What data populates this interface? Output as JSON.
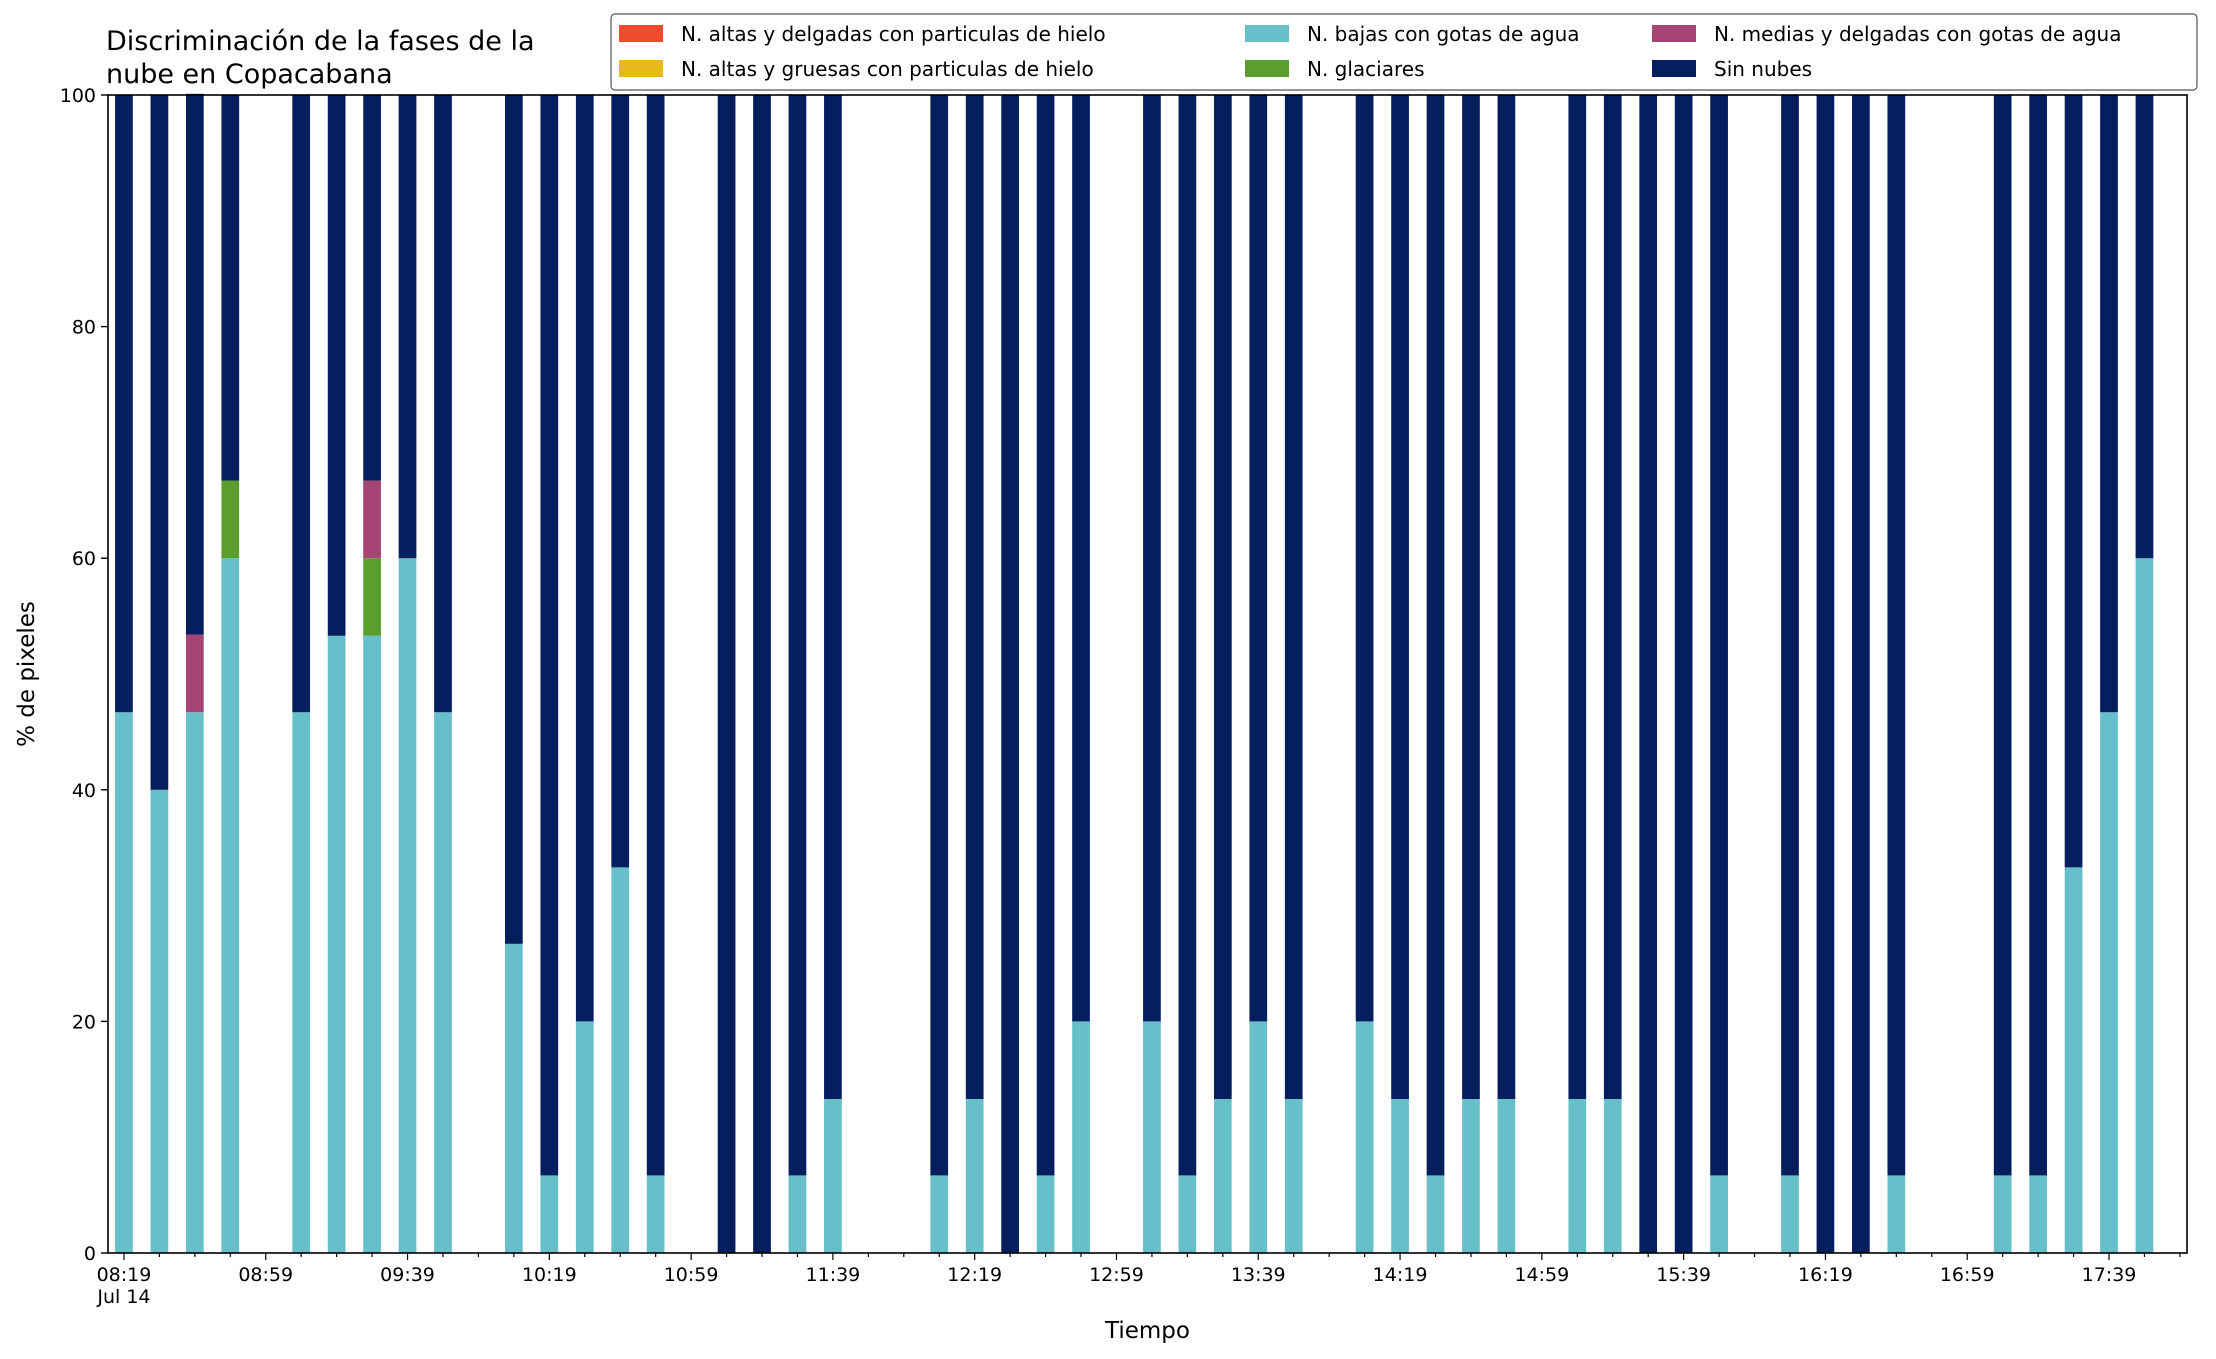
{
  "chart_data": {
    "type": "bar",
    "stacked": true,
    "title": "Discriminación de la fases de la\nnube en Copacabana",
    "xlabel": "Tiempo",
    "ylabel": "% de pixeles",
    "ylim": [
      0,
      100
    ],
    "yticks": [
      0,
      20,
      40,
      60,
      80,
      100
    ],
    "grid": false,
    "legend_position": "top-right",
    "x_date_label": "Jul 14",
    "x_tick_labels": [
      "08:19",
      "08:59",
      "09:39",
      "10:19",
      "10:59",
      "11:39",
      "12:19",
      "12:59",
      "13:39",
      "14:19",
      "14:59",
      "15:39",
      "16:19",
      "16:59",
      "17:39"
    ],
    "categories": [
      "08:19",
      "08:29",
      "08:39",
      "08:49",
      "08:59",
      "09:09",
      "09:19",
      "09:29",
      "09:39",
      "09:49",
      "09:59",
      "10:09",
      "10:19",
      "10:29",
      "10:39",
      "10:49",
      "10:59",
      "11:09",
      "11:19",
      "11:29",
      "11:39",
      "11:49",
      "11:59",
      "12:09",
      "12:19",
      "12:29",
      "12:39",
      "12:49",
      "12:59",
      "13:09",
      "13:19",
      "13:29",
      "13:39",
      "13:49",
      "13:59",
      "14:09",
      "14:19",
      "14:29",
      "14:39",
      "14:49",
      "14:59",
      "15:09",
      "15:19",
      "15:29",
      "15:39",
      "15:49",
      "15:59",
      "16:09",
      "16:19",
      "16:29",
      "16:39",
      "16:49",
      "16:59",
      "17:09",
      "17:19",
      "17:29",
      "17:39",
      "17:49"
    ],
    "series": [
      {
        "name": "N. altas y delgadas con particulas de hielo",
        "color": "#ee4c2c",
        "values": [
          0,
          0,
          0,
          0,
          null,
          0,
          0,
          0,
          0,
          0,
          null,
          0,
          0,
          0,
          0,
          0,
          null,
          0,
          0,
          0,
          0,
          0,
          null,
          0,
          0,
          0,
          0,
          0,
          null,
          0,
          0,
          0,
          0,
          0,
          null,
          0,
          0,
          0,
          0,
          0,
          null,
          0,
          0,
          0,
          0,
          0,
          null,
          0,
          0,
          0,
          0,
          0,
          null,
          0,
          0,
          0,
          0,
          0
        ]
      },
      {
        "name": "N. altas y gruesas con particulas de hielo",
        "color": "#e7b91c",
        "values": [
          0,
          0,
          0,
          0,
          null,
          0,
          0,
          0,
          0,
          0,
          null,
          0,
          0,
          0,
          0,
          0,
          null,
          0,
          0,
          0,
          0,
          0,
          null,
          0,
          0,
          0,
          0,
          0,
          null,
          0,
          0,
          0,
          0,
          0,
          null,
          0,
          0,
          0,
          0,
          0,
          null,
          0,
          0,
          0,
          0,
          0,
          null,
          0,
          0,
          0,
          0,
          0,
          null,
          0,
          0,
          0,
          0,
          0
        ]
      },
      {
        "name": "N. bajas con gotas de agua",
        "color": "#67bfca",
        "values": [
          46.7,
          40,
          46.7,
          60,
          null,
          46.7,
          53.3,
          53.3,
          60,
          46.7,
          null,
          26.7,
          6.7,
          20,
          33.3,
          6.7,
          null,
          0,
          0,
          6.7,
          13.3,
          null,
          null,
          6.7,
          13.3,
          0,
          6.7,
          20,
          null,
          20,
          6.7,
          13.3,
          20,
          13.3,
          null,
          20,
          13.3,
          6.7,
          13.3,
          13.3,
          null,
          13.3,
          13.3,
          0,
          0,
          6.7,
          null,
          6.7,
          0,
          0,
          6.7,
          null,
          null,
          6.7,
          6.7,
          33.3,
          46.7,
          60
        ]
      },
      {
        "name": "N. glaciares",
        "color": "#5b9e2e",
        "values": [
          0,
          0,
          0,
          6.7,
          null,
          0,
          0,
          6.7,
          0,
          0,
          null,
          0,
          0,
          0,
          0,
          0,
          null,
          0,
          0,
          0,
          0,
          0,
          null,
          0,
          0,
          0,
          0,
          0,
          null,
          0,
          0,
          0,
          0,
          0,
          null,
          0,
          0,
          0,
          0,
          0,
          null,
          0,
          0,
          0,
          0,
          0,
          null,
          0,
          0,
          0,
          0,
          0,
          null,
          0,
          0,
          0,
          0,
          0
        ]
      },
      {
        "name": "N. medias y delgadas con gotas de agua",
        "color": "#a64575",
        "values": [
          0,
          0,
          6.7,
          0,
          null,
          0,
          0,
          6.7,
          0,
          0,
          null,
          0,
          0,
          0,
          0,
          0,
          null,
          0,
          0,
          0,
          0,
          0,
          null,
          0,
          0,
          0,
          0,
          0,
          null,
          0,
          0,
          0,
          0,
          0,
          null,
          0,
          0,
          0,
          0,
          0,
          null,
          0,
          0,
          0,
          0,
          0,
          null,
          0,
          0,
          0,
          0,
          0,
          null,
          0,
          0,
          0,
          0,
          0
        ]
      },
      {
        "name": "Sin nubes",
        "color": "#051f5e",
        "values": [
          53.3,
          60,
          46.7,
          33.3,
          null,
          53.3,
          46.7,
          33.3,
          40,
          53.3,
          null,
          73.3,
          93.3,
          80,
          66.7,
          93.3,
          null,
          100,
          100,
          93.3,
          86.7,
          null,
          null,
          93.3,
          86.7,
          100,
          93.3,
          80,
          null,
          80,
          93.3,
          86.7,
          80,
          86.7,
          null,
          80,
          86.7,
          93.3,
          86.7,
          86.7,
          null,
          86.7,
          86.7,
          100,
          100,
          93.3,
          null,
          93.3,
          100,
          100,
          93.3,
          null,
          null,
          93.3,
          93.3,
          66.7,
          53.3,
          40
        ]
      }
    ]
  }
}
